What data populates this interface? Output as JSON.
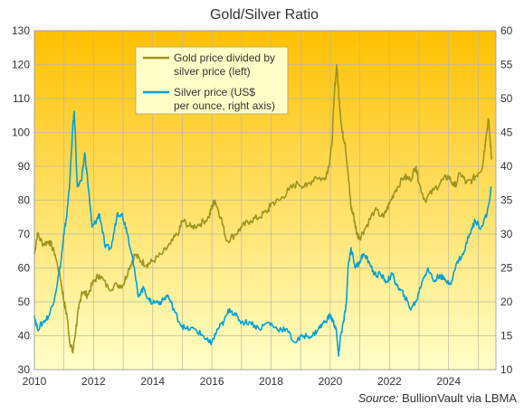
{
  "chart_data": {
    "type": "line",
    "title": "Gold/Silver Ratio",
    "source_label": "Source:",
    "source_text": "BullionVault via LBMA",
    "x_ticks": [
      "2010",
      "2012",
      "2014",
      "2016",
      "2018",
      "2020",
      "2022",
      "2024"
    ],
    "x_range": [
      2010,
      2025.6
    ],
    "left_axis": {
      "range": [
        30,
        130
      ],
      "ticks": [
        "30",
        "40",
        "50",
        "60",
        "70",
        "80",
        "90",
        "100",
        "110",
        "120",
        "130"
      ]
    },
    "right_axis": {
      "range": [
        10,
        60
      ],
      "ticks": [
        "10",
        "15",
        "20",
        "25",
        "30",
        "35",
        "40",
        "45",
        "50",
        "55",
        "60"
      ]
    },
    "grid": true,
    "legend_position": "top-center",
    "background_gradient": [
      "#FFC000",
      "#FFFFC8"
    ],
    "series": [
      {
        "name": "Gold price divided by silver price (left)",
        "axis": "left",
        "color": "#9C9420",
        "x": [
          2010.0,
          2010.1,
          2010.3,
          2010.5,
          2010.7,
          2010.9,
          2011.0,
          2011.1,
          2011.2,
          2011.3,
          2011.4,
          2011.5,
          2011.6,
          2011.8,
          2012.0,
          2012.2,
          2012.5,
          2012.8,
          2013.0,
          2013.2,
          2013.4,
          2013.6,
          2013.8,
          2014.0,
          2014.3,
          2014.6,
          2014.9,
          2015.0,
          2015.3,
          2015.6,
          2015.9,
          2016.0,
          2016.1,
          2016.3,
          2016.5,
          2016.8,
          2017.0,
          2017.3,
          2017.6,
          2017.9,
          2018.0,
          2018.3,
          2018.6,
          2018.9,
          2019.2,
          2019.5,
          2019.8,
          2019.95,
          2020.05,
          2020.15,
          2020.22,
          2020.3,
          2020.4,
          2020.5,
          2020.6,
          2020.7,
          2020.8,
          2020.9,
          2021.0,
          2021.2,
          2021.5,
          2021.8,
          2022.0,
          2022.2,
          2022.5,
          2022.7,
          2022.9,
          2023.0,
          2023.2,
          2023.5,
          2023.8,
          2024.0,
          2024.2,
          2024.4,
          2024.6,
          2024.8,
          2025.0,
          2025.15,
          2025.25,
          2025.35,
          2025.45
        ],
        "y": [
          64,
          70,
          67,
          68,
          64,
          56,
          50,
          46,
          38,
          35,
          42,
          48,
          53,
          52,
          56,
          58,
          54,
          55,
          55,
          60,
          64,
          62,
          61,
          62,
          64,
          67,
          71,
          74,
          72,
          73,
          75,
          78,
          80,
          75,
          68,
          70,
          72,
          74,
          75,
          77,
          79,
          80,
          83,
          85,
          84,
          87,
          86,
          90,
          96,
          113,
          120,
          110,
          100,
          97,
          88,
          78,
          75,
          70,
          69,
          72,
          77,
          75,
          79,
          83,
          87,
          86,
          90,
          85,
          80,
          83,
          86,
          87,
          84,
          88,
          85,
          86,
          88,
          90,
          98,
          104,
          92
        ],
        "ticks_series": true
      },
      {
        "name": "Silver price (US$ per ounce, right axis)",
        "axis": "right",
        "color": "#00A0D8",
        "x": [
          2010.0,
          2010.1,
          2010.3,
          2010.5,
          2010.7,
          2010.9,
          2011.0,
          2011.1,
          2011.2,
          2011.3,
          2011.35,
          2011.45,
          2011.6,
          2011.7,
          2011.8,
          2011.95,
          2012.1,
          2012.2,
          2012.4,
          2012.6,
          2012.8,
          2012.95,
          2013.1,
          2013.3,
          2013.5,
          2013.7,
          2013.9,
          2014.1,
          2014.3,
          2014.5,
          2014.7,
          2014.9,
          2015.1,
          2015.4,
          2015.7,
          2015.9,
          2016.0,
          2016.2,
          2016.4,
          2016.6,
          2016.8,
          2017.0,
          2017.3,
          2017.6,
          2017.9,
          2018.2,
          2018.5,
          2018.8,
          2019.1,
          2019.4,
          2019.6,
          2019.8,
          2020.0,
          2020.1,
          2020.2,
          2020.28,
          2020.35,
          2020.45,
          2020.55,
          2020.6,
          2020.7,
          2020.85,
          2021.0,
          2021.1,
          2021.3,
          2021.5,
          2021.7,
          2021.9,
          2022.1,
          2022.3,
          2022.5,
          2022.7,
          2022.9,
          2023.1,
          2023.3,
          2023.5,
          2023.7,
          2023.9,
          2024.1,
          2024.3,
          2024.5,
          2024.7,
          2024.9,
          2025.1,
          2025.3,
          2025.45
        ],
        "y": [
          18,
          16,
          17,
          18,
          21,
          26,
          30,
          33,
          38,
          46,
          48,
          37,
          38,
          42,
          38,
          31,
          32,
          33,
          28,
          28,
          33,
          33,
          31,
          27,
          21,
          22,
          20,
          20,
          20,
          21,
          19,
          17,
          16,
          16,
          15,
          14,
          14,
          16,
          17,
          19,
          18,
          17,
          17,
          16,
          17,
          16,
          16,
          14,
          15,
          15,
          16,
          17,
          18,
          17,
          16,
          12,
          15,
          17,
          20,
          25,
          28,
          25,
          26,
          27,
          26,
          24,
          24,
          23,
          24,
          22,
          21,
          19,
          20,
          23,
          25,
          23,
          24,
          23,
          23,
          26,
          27,
          30,
          32,
          31,
          33,
          37
        ],
        "ticks_series": false
      }
    ]
  }
}
